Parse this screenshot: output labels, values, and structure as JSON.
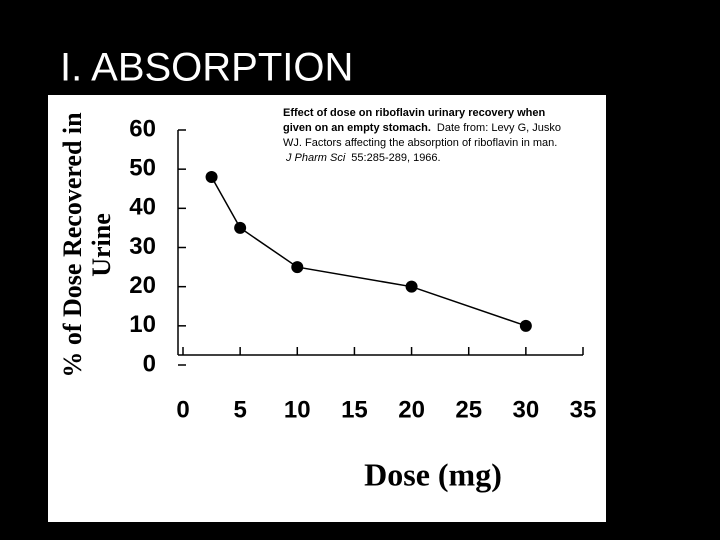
{
  "title": "I. ABSORPTION",
  "chart_data": {
    "type": "line",
    "xlabel": "Dose (mg)",
    "ylabel": [
      "% of Dose Recovered in",
      "Urine"
    ],
    "annotation": [
      [
        "Effect of dose on riboflavin urinary recovery when"
      ],
      [
        "given on an empty stomach.",
        "Date from: Levy G, Jusko"
      ],
      [
        "WJ. Factors affecting the absorption of riboflavin in man."
      ],
      [
        "J Pharm Sci",
        "55:285-289, 1966."
      ]
    ],
    "x": [
      2.5,
      5,
      10,
      20,
      30
    ],
    "series": [
      {
        "color": "#000000",
        "values": [
          48,
          35,
          25,
          20,
          10
        ]
      }
    ],
    "xlim": [
      0,
      35
    ],
    "xticks": [
      0,
      5,
      10,
      15,
      20,
      25,
      30,
      35
    ],
    "ylim": [
      0,
      60
    ],
    "yticks": [
      0,
      10,
      20,
      30,
      40,
      50,
      60
    ]
  }
}
